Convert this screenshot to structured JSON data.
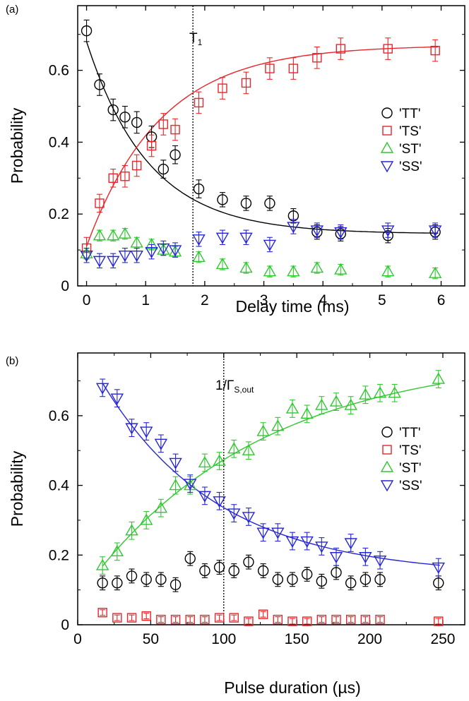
{
  "chart_data": [
    {
      "type": "scatter",
      "panel_label": "(a)",
      "xlabel": "Delay time (ms)",
      "ylabel": "Probability",
      "xlim": [
        -0.15,
        6.4
      ],
      "ylim": [
        0,
        0.78
      ],
      "xticks": [
        "0",
        "1",
        "2",
        "3",
        "4",
        "5",
        "6"
      ],
      "yticks": [
        "0",
        "0.2",
        "0.4",
        "0.6"
      ],
      "vline": {
        "x": 1.8,
        "label": "T",
        "label_sub": "1"
      },
      "legend_position": "right",
      "series": [
        {
          "name": "'TT'",
          "marker": "circle",
          "color": "#000000",
          "x": [
            0,
            0.22,
            0.45,
            0.65,
            0.85,
            1.1,
            1.3,
            1.5,
            1.9,
            2.3,
            2.7,
            3.1,
            3.5,
            3.9,
            4.3,
            5.1,
            5.9
          ],
          "y": [
            0.71,
            0.56,
            0.49,
            0.47,
            0.455,
            0.415,
            0.325,
            0.365,
            0.27,
            0.24,
            0.23,
            0.23,
            0.195,
            0.15,
            0.145,
            0.14,
            0.15
          ],
          "err": [
            0.03,
            0.03,
            0.03,
            0.03,
            0.03,
            0.03,
            0.025,
            0.025,
            0.025,
            0.02,
            0.02,
            0.02,
            0.02,
            0.02,
            0.02,
            0.02,
            0.02
          ],
          "fit": {
            "a": 0.145,
            "b": 0.535,
            "tau": 1.05
          }
        },
        {
          "name": "'TS'",
          "marker": "square",
          "color": "#e8252a",
          "x": [
            0,
            0.22,
            0.45,
            0.65,
            0.85,
            1.1,
            1.3,
            1.5,
            1.9,
            2.3,
            2.7,
            3.1,
            3.5,
            3.9,
            4.3,
            5.1,
            5.9
          ],
          "y": [
            0.105,
            0.23,
            0.3,
            0.305,
            0.335,
            0.39,
            0.45,
            0.435,
            0.51,
            0.55,
            0.565,
            0.605,
            0.605,
            0.635,
            0.66,
            0.66,
            0.655
          ],
          "err": [
            0.03,
            0.025,
            0.025,
            0.03,
            0.03,
            0.03,
            0.03,
            0.03,
            0.03,
            0.03,
            0.03,
            0.03,
            0.03,
            0.03,
            0.03,
            0.03,
            0.03
          ],
          "fit": {
            "a": 0.67,
            "b": -0.56,
            "tau": 1.25
          }
        },
        {
          "name": "'ST'",
          "marker": "triangle-up",
          "color": "#2fc82f",
          "x": [
            0,
            0.22,
            0.45,
            0.65,
            0.85,
            1.1,
            1.3,
            1.5,
            1.9,
            2.3,
            2.7,
            3.1,
            3.5,
            3.9,
            4.3,
            5.1,
            5.9
          ],
          "y": [
            0.09,
            0.14,
            0.14,
            0.145,
            0.12,
            0.115,
            0.1,
            0.095,
            0.08,
            0.06,
            0.05,
            0.04,
            0.04,
            0.05,
            0.045,
            0.04,
            0.035
          ],
          "err": [
            0.015,
            0.015,
            0.015,
            0.015,
            0.015,
            0.015,
            0.015,
            0.015,
            0.015,
            0.015,
            0.015,
            0.015,
            0.015,
            0.015,
            0.015,
            0.015,
            0.015
          ]
        },
        {
          "name": "'SS'",
          "marker": "triangle-down",
          "color": "#2424d8",
          "x": [
            0,
            0.22,
            0.45,
            0.65,
            0.85,
            1.1,
            1.3,
            1.5,
            1.9,
            2.3,
            2.7,
            3.1,
            3.5,
            3.9,
            4.3,
            5.1,
            5.9
          ],
          "y": [
            0.085,
            0.07,
            0.07,
            0.085,
            0.085,
            0.095,
            0.105,
            0.1,
            0.13,
            0.135,
            0.135,
            0.115,
            0.165,
            0.155,
            0.15,
            0.155,
            0.155
          ],
          "err": [
            0.02,
            0.02,
            0.02,
            0.02,
            0.02,
            0.02,
            0.02,
            0.02,
            0.02,
            0.02,
            0.02,
            0.02,
            0.02,
            0.02,
            0.02,
            0.02,
            0.02
          ]
        }
      ]
    },
    {
      "type": "scatter",
      "panel_label": "(b)",
      "xlabel": "Pulse duration (µs)",
      "ylabel": "Probability",
      "xlim": [
        0,
        265
      ],
      "ylim": [
        0,
        0.78
      ],
      "xticks": [
        "0",
        "50",
        "100",
        "150",
        "200",
        "250"
      ],
      "yticks": [
        "0",
        "0.2",
        "0.4",
        "0.6"
      ],
      "vline": {
        "x": 100,
        "label": "1/Γ",
        "label_sub": "S,out"
      },
      "legend_position": "right",
      "series": [
        {
          "name": "'TT'",
          "marker": "circle",
          "color": "#000000",
          "x": [
            17,
            27,
            37,
            47,
            57,
            67,
            77,
            87,
            97,
            107,
            117,
            127,
            137,
            147,
            157,
            167,
            177,
            187,
            197,
            207,
            247
          ],
          "y": [
            0.12,
            0.12,
            0.14,
            0.13,
            0.13,
            0.115,
            0.19,
            0.155,
            0.165,
            0.155,
            0.18,
            0.155,
            0.13,
            0.13,
            0.145,
            0.125,
            0.15,
            0.12,
            0.13,
            0.13,
            0.12
          ],
          "err": [
            0.02,
            0.02,
            0.02,
            0.02,
            0.02,
            0.02,
            0.02,
            0.02,
            0.02,
            0.02,
            0.02,
            0.02,
            0.02,
            0.02,
            0.02,
            0.02,
            0.02,
            0.02,
            0.02,
            0.02,
            0.02
          ]
        },
        {
          "name": "'TS'",
          "marker": "square",
          "color": "#e8252a",
          "x": [
            17,
            27,
            37,
            47,
            57,
            67,
            77,
            87,
            97,
            107,
            117,
            127,
            137,
            147,
            157,
            167,
            177,
            187,
            197,
            207,
            247
          ],
          "y": [
            0.035,
            0.02,
            0.02,
            0.025,
            0.015,
            0.015,
            0.015,
            0.015,
            0.02,
            0.02,
            0.01,
            0.03,
            0.015,
            0.01,
            0.01,
            0.015,
            0.015,
            0.015,
            0.015,
            0.015,
            0.01
          ],
          "err": [
            0.008,
            0.008,
            0.008,
            0.008,
            0.008,
            0.008,
            0.008,
            0.008,
            0.008,
            0.008,
            0.008,
            0.008,
            0.008,
            0.008,
            0.008,
            0.008,
            0.008,
            0.008,
            0.008,
            0.008,
            0.008
          ]
        },
        {
          "name": "'ST'",
          "marker": "triangle-up",
          "color": "#2fc82f",
          "x": [
            17,
            27,
            37,
            47,
            57,
            67,
            77,
            87,
            97,
            107,
            117,
            127,
            137,
            147,
            157,
            167,
            177,
            187,
            197,
            207,
            217,
            247
          ],
          "y": [
            0.17,
            0.21,
            0.27,
            0.3,
            0.335,
            0.4,
            0.4,
            0.465,
            0.47,
            0.505,
            0.5,
            0.555,
            0.57,
            0.62,
            0.605,
            0.63,
            0.64,
            0.63,
            0.66,
            0.665,
            0.665,
            0.705
          ],
          "err": [
            0.025,
            0.025,
            0.025,
            0.025,
            0.025,
            0.025,
            0.025,
            0.025,
            0.025,
            0.025,
            0.025,
            0.025,
            0.025,
            0.025,
            0.025,
            0.025,
            0.025,
            0.025,
            0.025,
            0.025,
            0.025,
            0.025
          ],
          "fit": {
            "a": 0.78,
            "b": -0.705,
            "tau": 120
          }
        },
        {
          "name": "'SS'",
          "marker": "triangle-down",
          "color": "#2424d8",
          "x": [
            17,
            27,
            37,
            47,
            57,
            67,
            77,
            87,
            97,
            107,
            117,
            127,
            137,
            147,
            157,
            167,
            177,
            187,
            197,
            207,
            247
          ],
          "y": [
            0.68,
            0.65,
            0.565,
            0.555,
            0.52,
            0.465,
            0.405,
            0.37,
            0.355,
            0.32,
            0.31,
            0.265,
            0.265,
            0.24,
            0.24,
            0.225,
            0.195,
            0.235,
            0.195,
            0.185,
            0.165
          ],
          "err": [
            0.025,
            0.025,
            0.025,
            0.025,
            0.025,
            0.025,
            0.025,
            0.025,
            0.025,
            0.025,
            0.025,
            0.025,
            0.025,
            0.025,
            0.025,
            0.025,
            0.025,
            0.025,
            0.025,
            0.025,
            0.025
          ],
          "fit": {
            "a": 0.14,
            "b": 0.685,
            "tau": 80
          }
        }
      ]
    }
  ]
}
